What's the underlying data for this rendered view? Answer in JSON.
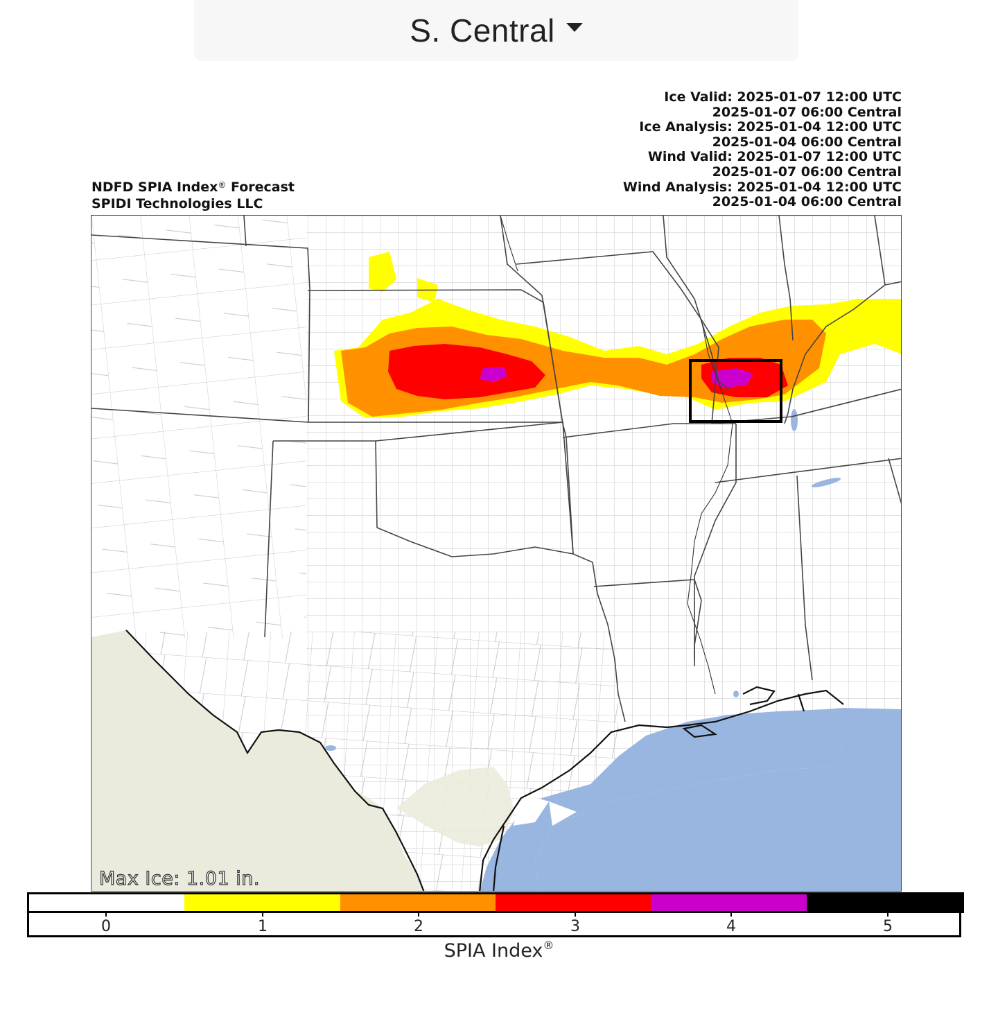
{
  "region_selector": {
    "label": "S. Central"
  },
  "header_left": {
    "line1_prefix": "NDFD SPIA Index",
    "line1_mark": "®",
    "line1_suffix": " Forecast",
    "line2": "SPIDI Technologies LLC"
  },
  "header_right": [
    "Ice Valid: 2025-01-07 12:00 UTC",
    "2025-01-07 06:00 Central",
    "Ice Analysis: 2025-01-04 12:00 UTC",
    "2025-01-04 06:00 Central",
    "Wind Valid: 2025-01-07 12:00 UTC",
    "2025-01-07 06:00 Central",
    "Wind Analysis: 2025-01-04 12:00 UTC",
    "2025-01-04 06:00 Central"
  ],
  "map": {
    "max_ice_label": "Max Ice: 1.01 in.",
    "colors": {
      "land": "#ffffff",
      "foreign_land": "#ebebdd",
      "water": "#99b6e0",
      "state_border": "#444444",
      "county_border": "#b4b4b4",
      "coastline": "#111111"
    },
    "highlight_box": "max-ice-location-box"
  },
  "colorbar": {
    "title_prefix": "SPIA Index",
    "title_mark": "®",
    "colors": [
      "#ffffff",
      "#ffff00",
      "#ff9100",
      "#ff0000",
      "#cc00cc",
      "#000000"
    ],
    "ticks": [
      "0",
      "1",
      "2",
      "3",
      "4",
      "5"
    ]
  }
}
